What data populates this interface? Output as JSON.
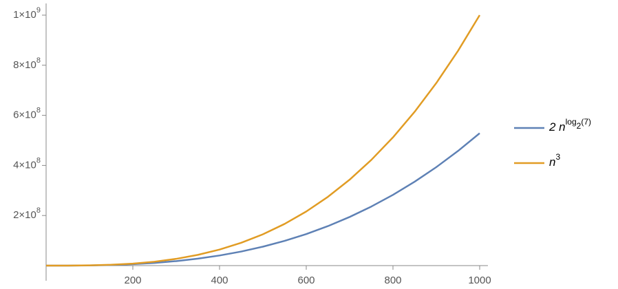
{
  "chart_data": {
    "type": "line",
    "x": [
      0,
      50,
      100,
      150,
      200,
      250,
      300,
      350,
      400,
      450,
      500,
      550,
      600,
      650,
      700,
      750,
      800,
      850,
      900,
      950,
      1000
    ],
    "series": [
      {
        "name": [
          {
            "text": "2 n"
          },
          {
            "text": "log",
            "pos": "sup"
          },
          {
            "text": "2",
            "pos": "sub"
          },
          {
            "text": "(7)",
            "pos": "sup"
          }
        ],
        "color": "#5e81b5",
        "values": [
          0,
          117700,
          823550,
          2570400,
          5765400,
          10786600,
          17997800,
          27748000,
          40362000,
          56174000,
          75506000,
          98672000,
          125974000,
          157696000,
          194186000,
          235700000,
          282500000,
          334940000,
          393220000,
          457640000,
          528480000
        ]
      },
      {
        "name": [
          {
            "text": "n"
          },
          {
            "text": "3",
            "pos": "sup"
          }
        ],
        "color": "#e19c24",
        "values": [
          0,
          125000,
          1000000,
          3375000,
          8000000,
          15625000,
          27000000,
          42875000,
          64000000,
          91125000,
          125000000,
          166375000,
          216000000,
          274625000,
          343000000,
          421875000,
          512000000,
          614125000,
          729000000,
          857375000,
          1000000000
        ]
      }
    ],
    "xlim": [
      0,
      1000
    ],
    "xticks": [
      200,
      400,
      600,
      800,
      1000
    ],
    "ylim": [
      0,
      1000000000
    ],
    "yticks": [
      {
        "value": 200000000,
        "label": "2×10",
        "exponent": "8"
      },
      {
        "value": 400000000,
        "label": "4×10",
        "exponent": "8"
      },
      {
        "value": 600000000,
        "label": "6×10",
        "exponent": "8"
      },
      {
        "value": 800000000,
        "label": "8×10",
        "exponent": "8"
      },
      {
        "value": 1000000000,
        "label": "1×10",
        "exponent": "9"
      }
    ]
  }
}
